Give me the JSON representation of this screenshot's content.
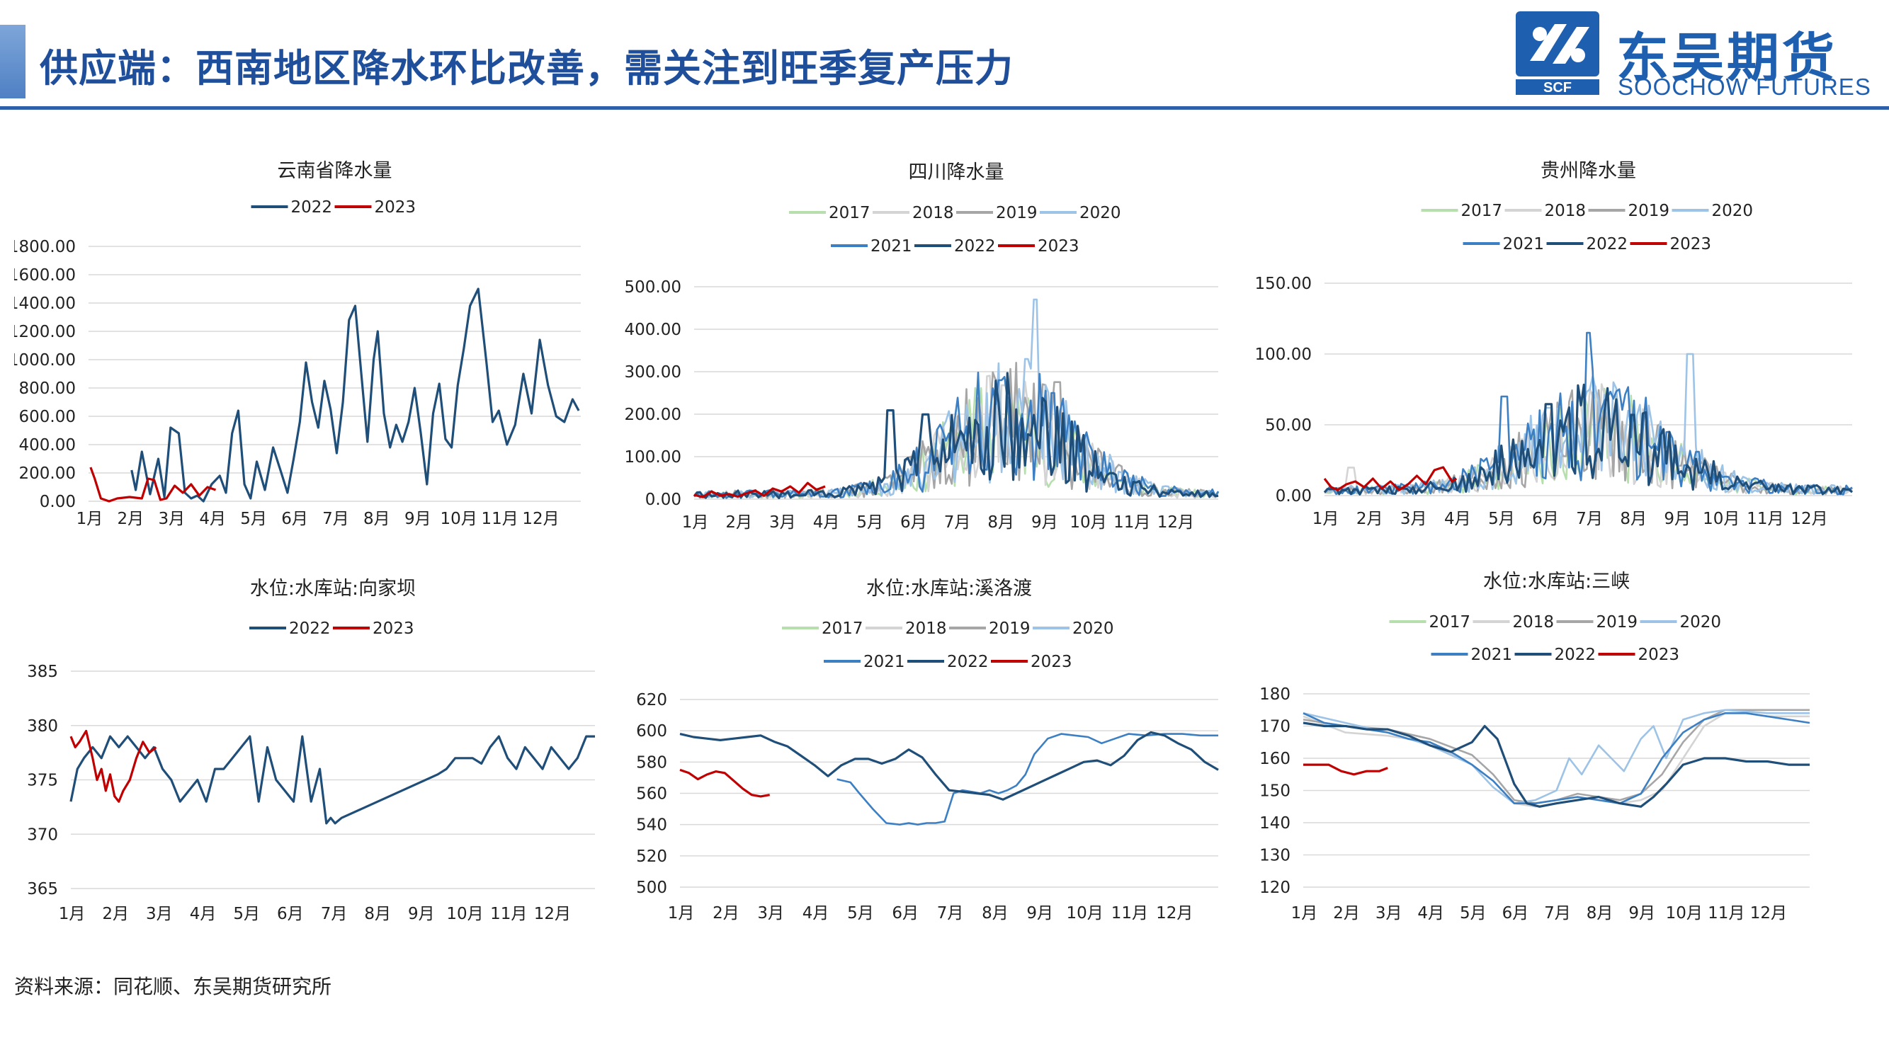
{
  "header": {
    "title": "供应端：西南地区降水环比改善，需关注到旺季复产压力",
    "logo_cn": "东吴期货",
    "logo_en": "SOOCHOW FUTURES",
    "logo_mark_text": "SCF",
    "brand_color": "#1f5fb0"
  },
  "source": "资料来源：同花顺、东吴期货研究所",
  "months": [
    "1月",
    "2月",
    "3月",
    "4月",
    "5月",
    "6月",
    "7月",
    "8月",
    "9月",
    "10月",
    "11月",
    "12月"
  ],
  "series_colors": {
    "2017": "#b7dfae",
    "2018": "#d4d4d4",
    "2019": "#a6a6a6",
    "2020": "#9dc3e6",
    "2021": "#3c7fc3",
    "2022": "#1f4e79",
    "2023": "#c00000"
  },
  "chart_data": [
    {
      "type": "line",
      "title": "云南省降水量",
      "legend": [
        "2022",
        "2023"
      ],
      "ylim": [
        0,
        1800
      ],
      "ticks": [
        0,
        200,
        400,
        600,
        800,
        1000,
        1200,
        1400,
        1600,
        1800
      ],
      "tick_format": "0.00",
      "x_unit": "month (1=Jan start, 13=year end)",
      "series": [
        {
          "name": "2022",
          "x": [
            2.05,
            2.15,
            2.3,
            2.5,
            2.7,
            2.85,
            3.0,
            3.2,
            3.35,
            3.5,
            3.65,
            3.8,
            4.0,
            4.2,
            4.35,
            4.5,
            4.65,
            4.8,
            4.95,
            5.1,
            5.3,
            5.5,
            5.7,
            5.85,
            6.0,
            6.15,
            6.3,
            6.45,
            6.6,
            6.75,
            6.9,
            7.05,
            7.2,
            7.35,
            7.5,
            7.65,
            7.8,
            7.95,
            8.05,
            8.2,
            8.35,
            8.5,
            8.65,
            8.8,
            8.95,
            9.1,
            9.25,
            9.4,
            9.55,
            9.7,
            9.85,
            10.0,
            10.15,
            10.3,
            10.5,
            10.7,
            10.85,
            11.0,
            11.2,
            11.4,
            11.6,
            11.8,
            12.0,
            12.2,
            12.4,
            12.6,
            12.8,
            12.95
          ],
          "y": [
            220,
            80,
            350,
            50,
            300,
            30,
            520,
            480,
            60,
            20,
            40,
            0,
            120,
            180,
            60,
            480,
            640,
            120,
            20,
            280,
            80,
            380,
            200,
            60,
            300,
            560,
            980,
            700,
            520,
            850,
            650,
            340,
            700,
            1280,
            1380,
            900,
            420,
            1000,
            1200,
            620,
            380,
            540,
            420,
            560,
            800,
            480,
            120,
            620,
            830,
            440,
            380,
            820,
            1080,
            1380,
            1500,
            980,
            560,
            640,
            400,
            540,
            900,
            620,
            1140,
            820,
            600,
            560,
            720,
            640
          ],
          "yr": 2022
        },
        {
          "name": "2023",
          "x": [
            1.05,
            1.15,
            1.3,
            1.5,
            1.7,
            2.0,
            2.3,
            2.45,
            2.6,
            2.75,
            2.9,
            3.1,
            3.3,
            3.5,
            3.7,
            3.9,
            4.1
          ],
          "y": [
            240,
            160,
            20,
            0,
            20,
            30,
            20,
            160,
            150,
            10,
            20,
            110,
            60,
            120,
            40,
            100,
            80
          ],
          "yr": 2023
        }
      ]
    },
    {
      "type": "line",
      "title": "四川降水量",
      "legend": [
        "2017",
        "2018",
        "2019",
        "2020",
        "2021",
        "2022",
        "2023"
      ],
      "ylim": [
        0,
        500
      ],
      "ticks": [
        0,
        100,
        200,
        300,
        400,
        500
      ],
      "tick_format": "0.00"
    },
    {
      "type": "line",
      "title": "贵州降水量",
      "legend": [
        "2017",
        "2018",
        "2019",
        "2020",
        "2021",
        "2022",
        "2023"
      ],
      "ylim": [
        0,
        150
      ],
      "ticks": [
        0,
        50,
        100,
        150
      ],
      "tick_format": "0.00"
    },
    {
      "type": "line",
      "title": "水位:水库站:向家坝",
      "legend": [
        "2022",
        "2023"
      ],
      "ylim": [
        365,
        385
      ],
      "ticks": [
        365,
        370,
        375,
        380,
        385
      ],
      "tick_format": "0",
      "series": [
        {
          "name": "2022",
          "x": [
            1.0,
            1.15,
            1.3,
            1.5,
            1.7,
            1.9,
            2.1,
            2.3,
            2.5,
            2.7,
            2.9,
            3.1,
            3.3,
            3.5,
            3.7,
            3.9,
            4.1,
            4.3,
            4.5,
            4.7,
            4.9,
            5.1,
            5.3,
            5.5,
            5.7,
            5.9,
            6.1,
            6.3,
            6.5,
            6.7,
            6.85,
            6.95,
            7.05,
            7.2,
            9.4,
            9.6,
            9.8,
            10.0,
            10.2,
            10.4,
            10.6,
            10.8,
            11.0,
            11.2,
            11.4,
            11.6,
            11.8,
            12.0,
            12.2,
            12.4,
            12.6,
            12.8,
            13.0
          ],
          "y": [
            373,
            376,
            377,
            378,
            377,
            379,
            378,
            379,
            378,
            377,
            378,
            376,
            375,
            373,
            374,
            375,
            373,
            376,
            376,
            377,
            378,
            379,
            373,
            378,
            375,
            374,
            373,
            379,
            373,
            376,
            371,
            371.5,
            371,
            371.5,
            375.5,
            376,
            377,
            377,
            377,
            376.5,
            378,
            379,
            377,
            376,
            378,
            377,
            376,
            378,
            377,
            376,
            377,
            379,
            379
          ],
          "yr": 2022
        },
        {
          "name": "2023",
          "x": [
            1.0,
            1.1,
            1.2,
            1.35,
            1.5,
            1.6,
            1.7,
            1.8,
            1.9,
            2.0,
            2.1,
            2.2,
            2.35,
            2.5,
            2.65,
            2.8,
            2.95
          ],
          "y": [
            379,
            378,
            378.5,
            379.5,
            377,
            375,
            376,
            374,
            375.5,
            373.5,
            373,
            374,
            375,
            377,
            378.5,
            377.5,
            378
          ],
          "yr": 2023
        }
      ]
    },
    {
      "type": "line",
      "title": "水位:水库站:溪洛渡",
      "legend": [
        "2017",
        "2018",
        "2019",
        "2020",
        "2021",
        "2022",
        "2023"
      ],
      "ylim": [
        500,
        620
      ],
      "ticks": [
        500,
        520,
        540,
        560,
        580,
        600,
        620
      ],
      "tick_format": "0",
      "series": [
        {
          "name": "2021",
          "x": [
            4.5,
            4.8,
            5.0,
            5.3,
            5.6,
            5.9,
            6.1,
            6.3,
            6.5,
            6.7,
            6.9,
            7.1,
            7.3,
            7.5,
            7.7,
            7.9,
            8.1,
            8.3,
            8.5,
            8.7,
            8.9,
            9.2,
            9.5,
            9.8,
            10.1,
            10.4,
            10.7,
            11.0,
            11.4,
            11.8,
            12.2,
            12.6,
            13.0
          ],
          "y": [
            569,
            567,
            560,
            550,
            541,
            540,
            541,
            540,
            541,
            541,
            542,
            560,
            562,
            561,
            560,
            562,
            560,
            562,
            565,
            572,
            585,
            595,
            598,
            597,
            596,
            592,
            595,
            598,
            597,
            598,
            598,
            597,
            597
          ],
          "yr": 2021
        },
        {
          "name": "2022",
          "x": [
            1.0,
            1.3,
            1.6,
            1.9,
            2.2,
            2.5,
            2.8,
            3.1,
            3.4,
            3.7,
            4.0,
            4.3,
            4.6,
            4.9,
            5.2,
            5.5,
            5.8,
            6.1,
            6.4,
            6.7,
            7.0,
            7.3,
            7.6,
            7.9,
            8.2,
            8.5,
            8.8,
            9.1,
            9.4,
            9.7,
            10.0,
            10.3,
            10.6,
            10.9,
            11.2,
            11.5,
            11.8,
            12.1,
            12.4,
            12.7,
            13.0
          ],
          "y": [
            598,
            596,
            595,
            594,
            595,
            596,
            597,
            593,
            590,
            584,
            578,
            571,
            578,
            582,
            582,
            579,
            582,
            588,
            583,
            572,
            562,
            561,
            560,
            559,
            556,
            560,
            564,
            568,
            572,
            576,
            580,
            581,
            578,
            584,
            594,
            599,
            597,
            592,
            588,
            580,
            575
          ],
          "yr": 2022
        },
        {
          "name": "2023",
          "x": [
            1.0,
            1.2,
            1.4,
            1.6,
            1.8,
            2.0,
            2.2,
            2.4,
            2.6,
            2.8,
            3.0
          ],
          "y": [
            575,
            573,
            569,
            572,
            574,
            573,
            568,
            563,
            559,
            558,
            559
          ],
          "yr": 2023
        }
      ]
    },
    {
      "type": "line",
      "title": "水位:水库站:三峡",
      "legend": [
        "2017",
        "2018",
        "2019",
        "2020",
        "2021",
        "2022",
        "2023"
      ],
      "ylim": [
        120,
        180
      ],
      "ticks": [
        120,
        130,
        140,
        150,
        160,
        170,
        180
      ],
      "tick_format": "0",
      "series": [
        {
          "name": "2018",
          "x": [
            1.0,
            2.0,
            3.0,
            4.0,
            5.0,
            5.5,
            6.0,
            6.5,
            7.0,
            7.5,
            8.0,
            8.5,
            9.0,
            9.5,
            10.0,
            10.5,
            11.0,
            11.5,
            12.0,
            13.0
          ],
          "y": [
            173,
            168,
            167,
            165,
            158,
            153,
            146,
            145,
            146,
            147,
            148,
            146,
            147,
            150,
            160,
            170,
            174,
            174,
            173,
            173
          ],
          "yr": 2018
        },
        {
          "name": "2019",
          "x": [
            1.0,
            2.0,
            3.0,
            4.0,
            5.0,
            5.5,
            6.0,
            6.5,
            7.0,
            7.5,
            8.0,
            8.5,
            9.0,
            9.5,
            10.0,
            10.5,
            11.0,
            12.0,
            13.0
          ],
          "y": [
            172,
            170,
            169,
            166,
            161,
            155,
            147,
            146,
            147,
            149,
            148,
            147,
            149,
            155,
            165,
            172,
            175,
            175,
            175
          ],
          "yr": 2019
        },
        {
          "name": "2020",
          "x": [
            1.0,
            2.0,
            3.0,
            4.0,
            5.0,
            5.5,
            6.0,
            6.5,
            7.0,
            7.3,
            7.6,
            8.0,
            8.3,
            8.6,
            9.0,
            9.3,
            9.6,
            10.0,
            10.5,
            11.0,
            12.0,
            13.0
          ],
          "y": [
            174,
            171,
            168,
            164,
            158,
            151,
            146,
            147,
            150,
            160,
            155,
            164,
            160,
            156,
            166,
            170,
            160,
            172,
            174,
            175,
            174,
            174
          ],
          "yr": 2020
        },
        {
          "name": "2021",
          "x": [
            1.0,
            1.5,
            2.0,
            2.5,
            3.0,
            3.5,
            4.0,
            4.5,
            5.0,
            5.5,
            6.0,
            6.5,
            7.0,
            7.5,
            8.0,
            8.5,
            9.0,
            9.5,
            10.0,
            10.5,
            11.0,
            11.5,
            12.0,
            12.5,
            13.0
          ],
          "y": [
            174,
            171,
            170,
            169,
            168,
            166,
            165,
            162,
            158,
            153,
            146,
            146,
            147,
            148,
            147,
            146,
            149,
            160,
            168,
            172,
            174,
            174,
            173,
            172,
            171
          ],
          "yr": 2021
        },
        {
          "name": "2022",
          "x": [
            1.0,
            1.5,
            2.0,
            2.5,
            3.0,
            3.5,
            4.0,
            4.5,
            5.0,
            5.3,
            5.6,
            6.0,
            6.3,
            6.6,
            7.0,
            7.5,
            8.0,
            8.5,
            9.0,
            9.3,
            9.6,
            10.0,
            10.5,
            11.0,
            11.5,
            12.0,
            12.5,
            13.0
          ],
          "y": [
            171,
            170,
            170,
            169,
            169,
            167,
            164,
            162,
            165,
            170,
            166,
            152,
            146,
            145,
            146,
            147,
            148,
            146,
            145,
            148,
            152,
            158,
            160,
            160,
            159,
            159,
            158,
            158
          ],
          "yr": 2022
        },
        {
          "name": "2023",
          "x": [
            1.0,
            1.3,
            1.6,
            1.9,
            2.2,
            2.5,
            2.8,
            3.0
          ],
          "y": [
            158,
            158,
            158,
            156,
            155,
            156,
            156,
            157
          ],
          "yr": 2023
        }
      ]
    }
  ]
}
